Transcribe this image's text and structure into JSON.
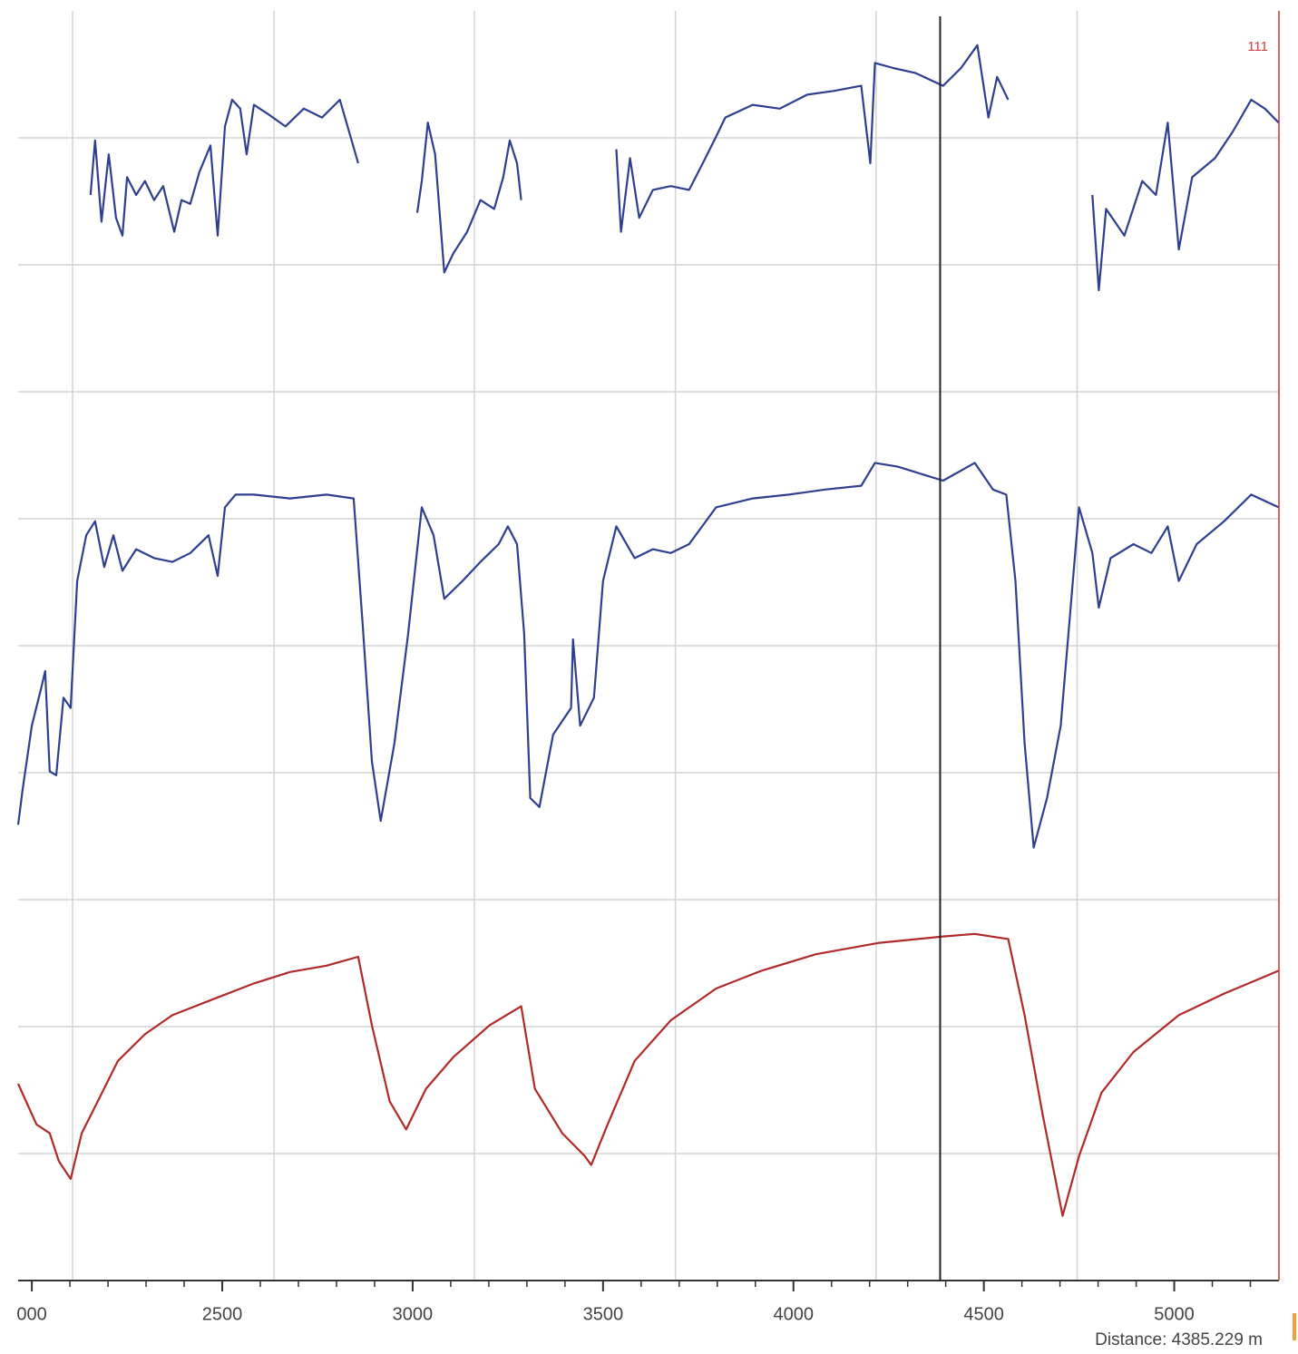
{
  "chart_data": {
    "type": "line",
    "annotation": "111",
    "cursor": 4385.229,
    "cursor_label": "Distance: 4385.229 m",
    "xlim": [
      1964,
      5275
    ],
    "xticks": [
      {
        "value": 2000,
        "label": "000"
      },
      2500,
      3000,
      3500,
      4000,
      4500,
      5000
    ],
    "minor_xtick_step": 100,
    "xgrid": [
      2107,
      2636,
      3162,
      3690,
      4217,
      4745
    ],
    "ylim": [
      0,
      10
    ],
    "ygrid": [
      1,
      2,
      3,
      4,
      5,
      6,
      7,
      8,
      9
    ],
    "grid": true,
    "series": [
      {
        "color": "#2f3f8f",
        "x": [
          2154,
          2166,
          2183,
          2202,
          2221,
          2238,
          2250,
          2274,
          2297,
          2321,
          2345,
          2374,
          2393,
          2416,
          2440,
          2469,
          2488,
          2507,
          2526,
          2547,
          2564,
          2583,
          2619,
          2666,
          2714,
          2762,
          2809,
          2857,
          null,
          3012,
          3024,
          3040,
          3059,
          3083,
          3107,
          3143,
          3178,
          3214,
          3238,
          3255,
          3274,
          3285,
          null,
          3535,
          3547,
          3571,
          3595,
          3631,
          3678,
          3726,
          3762,
          3797,
          3821,
          3893,
          3964,
          4036,
          4107,
          4178,
          4202,
          4214,
          4262,
          4321,
          4393,
          4440,
          4483,
          4512,
          4535,
          4564,
          null,
          4785,
          4802,
          4821,
          4869,
          4916,
          4952,
          4983,
          5012,
          5047,
          5107,
          5154,
          5202,
          5238,
          5274
        ],
        "values": [
          8.55,
          8.98,
          8.34,
          8.87,
          8.37,
          8.23,
          8.69,
          8.55,
          8.66,
          8.51,
          8.62,
          8.26,
          8.51,
          8.48,
          8.73,
          8.94,
          8.23,
          9.09,
          9.3,
          9.23,
          8.87,
          9.26,
          9.19,
          9.09,
          9.23,
          9.16,
          9.3,
          8.8,
          null,
          8.41,
          8.66,
          9.12,
          8.87,
          7.94,
          8.09,
          8.26,
          8.51,
          8.44,
          8.69,
          8.98,
          8.8,
          8.51,
          null,
          8.91,
          8.26,
          8.84,
          8.37,
          8.59,
          8.62,
          8.59,
          8.8,
          9.01,
          9.16,
          9.26,
          9.23,
          9.34,
          9.37,
          9.41,
          8.8,
          9.59,
          9.55,
          9.51,
          9.41,
          9.55,
          9.73,
          9.16,
          9.48,
          9.3,
          null,
          8.55,
          7.8,
          8.44,
          8.23,
          8.66,
          8.55,
          9.12,
          8.12,
          8.69,
          8.84,
          9.05,
          9.3,
          9.23,
          9.12
        ]
      },
      {
        "color": "#2f3f8f",
        "x": [
          1964,
          1976,
          2000,
          2024,
          2035,
          2047,
          2064,
          2083,
          2102,
          2119,
          2143,
          2166,
          2190,
          2214,
          2238,
          2274,
          2321,
          2369,
          2416,
          2464,
          2488,
          2507,
          2535,
          2583,
          2678,
          2774,
          2845,
          2869,
          2893,
          2916,
          2952,
          2988,
          3024,
          3055,
          3083,
          3131,
          3178,
          3226,
          3250,
          3274,
          3293,
          3309,
          3333,
          3369,
          3416,
          3421,
          3440,
          3476,
          3500,
          3535,
          3583,
          3631,
          3678,
          3726,
          3797,
          3893,
          3988,
          4083,
          4178,
          4214,
          4274,
          4393,
          4476,
          4524,
          4559,
          4583,
          4607,
          4631,
          4666,
          4702,
          4726,
          4750,
          4785,
          4802,
          4833,
          4893,
          4940,
          4983,
          5012,
          5059,
          5131,
          5202,
          5274
        ],
        "values": [
          3.59,
          3.87,
          4.37,
          4.66,
          4.8,
          4.01,
          3.98,
          4.59,
          4.51,
          5.51,
          5.87,
          5.98,
          5.62,
          5.87,
          5.59,
          5.76,
          5.69,
          5.66,
          5.73,
          5.87,
          5.55,
          6.09,
          6.19,
          6.19,
          6.16,
          6.19,
          6.16,
          5.16,
          4.09,
          3.62,
          4.23,
          5.09,
          6.09,
          5.87,
          5.37,
          5.51,
          5.66,
          5.8,
          5.94,
          5.8,
          5.09,
          3.8,
          3.73,
          4.3,
          4.51,
          5.05,
          4.37,
          4.59,
          5.51,
          5.94,
          5.69,
          5.76,
          5.73,
          5.8,
          6.09,
          6.16,
          6.19,
          6.23,
          6.26,
          6.44,
          6.41,
          6.3,
          6.44,
          6.23,
          6.19,
          5.51,
          4.23,
          3.41,
          3.8,
          4.37,
          5.23,
          6.09,
          5.73,
          5.3,
          5.69,
          5.8,
          5.73,
          5.94,
          5.51,
          5.8,
          5.98,
          6.19,
          6.09
        ]
      },
      {
        "color": "#b02a2a",
        "x": [
          1964,
          2012,
          2047,
          2071,
          2102,
          2131,
          2178,
          2226,
          2297,
          2369,
          2488,
          2583,
          2678,
          2774,
          2857,
          2893,
          2940,
          2983,
          3035,
          3107,
          3202,
          3285,
          3321,
          3393,
          3452,
          3469,
          3512,
          3583,
          3678,
          3797,
          3916,
          4059,
          4226,
          4393,
          4476,
          4564,
          4607,
          4655,
          4707,
          4750,
          4809,
          4893,
          5012,
          5131,
          5274
        ],
        "values": [
          1.55,
          1.23,
          1.16,
          0.94,
          0.8,
          1.16,
          1.44,
          1.73,
          1.94,
          2.09,
          2.23,
          2.34,
          2.43,
          2.48,
          2.55,
          2.01,
          1.41,
          1.19,
          1.51,
          1.76,
          2.01,
          2.16,
          1.51,
          1.16,
          0.98,
          0.91,
          1.23,
          1.73,
          2.05,
          2.3,
          2.44,
          2.57,
          2.66,
          2.71,
          2.73,
          2.69,
          2.09,
          1.3,
          0.51,
          0.98,
          1.48,
          1.8,
          2.09,
          2.26,
          2.44
        ]
      }
    ]
  }
}
